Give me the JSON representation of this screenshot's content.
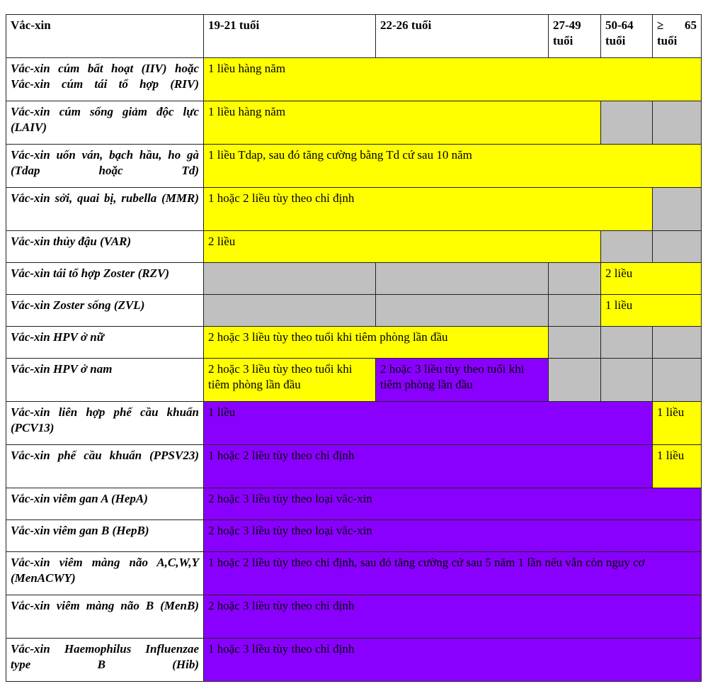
{
  "columns": [
    "Vắc-xin",
    "19-21 tuổi",
    "22-26 tuổi",
    "27-49 tuổi",
    "50-64 tuổi",
    "≥ 65 tuổi"
  ],
  "colors": {
    "recommended": "#ffff00",
    "not_recommended": "#c0c0c0",
    "risk_based": "#8a00ff"
  },
  "rows": [
    {
      "name": "Vắc-xin cúm bất hoạt (IIV) hoặc Vắc-xin cúm tái tổ hợp (RIV)",
      "cells": [
        {
          "span": 5,
          "color": "y",
          "text": "1 liều hàng năm"
        }
      ]
    },
    {
      "name": "Vắc-xin cúm sống giảm độc lực (LAIV)",
      "cells": [
        {
          "span": 3,
          "color": "y",
          "text": "1 liều hàng năm"
        },
        {
          "span": 1,
          "color": "g",
          "text": ""
        },
        {
          "span": 1,
          "color": "g",
          "text": ""
        }
      ]
    },
    {
      "name": "Vắc-xin uốn ván, bạch hầu, ho gà (Tdap hoặc Td)",
      "cells": [
        {
          "span": 5,
          "color": "y",
          "text": "1 liều Tdap, sau đó tăng cường bằng Td cứ sau 10 năm"
        }
      ]
    },
    {
      "name": "Vắc-xin sởi, quai bị, rubella (MMR)",
      "cells": [
        {
          "span": 4,
          "color": "y",
          "text": "1 hoặc 2 liều tùy theo chỉ định"
        },
        {
          "span": 1,
          "color": "g",
          "text": ""
        }
      ]
    },
    {
      "name": "Vắc-xin thủy đậu (VAR)",
      "cells": [
        {
          "span": 3,
          "color": "y",
          "text": "2 liều"
        },
        {
          "span": 1,
          "color": "g",
          "text": ""
        },
        {
          "span": 1,
          "color": "g",
          "text": ""
        }
      ]
    },
    {
      "name": "Vắc-xin tái tổ hợp Zoster (RZV)",
      "cells": [
        {
          "span": 1,
          "color": "g",
          "text": ""
        },
        {
          "span": 1,
          "color": "g",
          "text": ""
        },
        {
          "span": 1,
          "color": "g",
          "text": ""
        },
        {
          "span": 2,
          "color": "y",
          "text": "2 liều"
        }
      ]
    },
    {
      "name": "Vắc-xin Zoster sống (ZVL)",
      "cells": [
        {
          "span": 1,
          "color": "g",
          "text": ""
        },
        {
          "span": 1,
          "color": "g",
          "text": ""
        },
        {
          "span": 1,
          "color": "g",
          "text": ""
        },
        {
          "span": 2,
          "color": "y",
          "text": "1 liều"
        }
      ]
    },
    {
      "name": "Vắc-xin HPV ở nữ",
      "cells": [
        {
          "span": 2,
          "color": "y",
          "text": "2 hoặc 3 liều tùy theo tuổi khi tiêm phòng lần đầu"
        },
        {
          "span": 1,
          "color": "g",
          "text": ""
        },
        {
          "span": 1,
          "color": "g",
          "text": ""
        },
        {
          "span": 1,
          "color": "g",
          "text": ""
        }
      ]
    },
    {
      "name": "Vắc-xin HPV ở nam",
      "cells": [
        {
          "span": 1,
          "color": "y",
          "text": "2 hoặc 3 liều tùy theo tuổi khi tiêm phòng lần đầu"
        },
        {
          "span": 1,
          "color": "p",
          "text": "2 hoặc 3 liều tùy theo tuổi khi tiêm phòng lần đầu"
        },
        {
          "span": 1,
          "color": "g",
          "text": ""
        },
        {
          "span": 1,
          "color": "g",
          "text": ""
        },
        {
          "span": 1,
          "color": "g",
          "text": ""
        }
      ]
    },
    {
      "name": "Vắc-xin liên hợp phế cầu khuẩn (PCV13)",
      "cells": [
        {
          "span": 4,
          "color": "p",
          "text": "1 liều"
        },
        {
          "span": 1,
          "color": "y",
          "text": "1 liều"
        }
      ]
    },
    {
      "name": "Vắc-xin phế cầu khuẩn (PPSV23)",
      "cells": [
        {
          "span": 4,
          "color": "p",
          "text": "1 hoặc 2 liều tùy theo chỉ định"
        },
        {
          "span": 1,
          "color": "y",
          "text": "1 liều"
        }
      ]
    },
    {
      "name": "Vắc-xin viêm gan A (HepA)",
      "cells": [
        {
          "span": 5,
          "color": "p",
          "text": "2 hoặc 3 liều tùy theo loại vắc-xin"
        }
      ]
    },
    {
      "name": "Vắc-xin viêm gan B (HepB)",
      "cells": [
        {
          "span": 5,
          "color": "p",
          "text": "2 hoặc 3 liều tùy theo loại vắc-xin"
        }
      ]
    },
    {
      "name": "Vắc-xin viêm màng não A,C,W,Y (MenACWY)",
      "cells": [
        {
          "span": 5,
          "color": "p",
          "text": "1 hoặc 2 liều tùy theo chỉ định, sau đó tăng cường cứ sau 5 năm 1 lần nếu vẫn còn nguy cơ"
        }
      ]
    },
    {
      "name": "Vắc-xin viêm màng não B (MenB)",
      "cells": [
        {
          "span": 5,
          "color": "p",
          "text": "2 hoặc 3 liều tùy theo chỉ định"
        }
      ]
    },
    {
      "name": "Vắc-xin Haemophilus Influenzae type B (Hib)",
      "cells": [
        {
          "span": 5,
          "color": "p",
          "text": "1 hoặc 3 liều tùy theo chỉ định"
        }
      ]
    }
  ]
}
